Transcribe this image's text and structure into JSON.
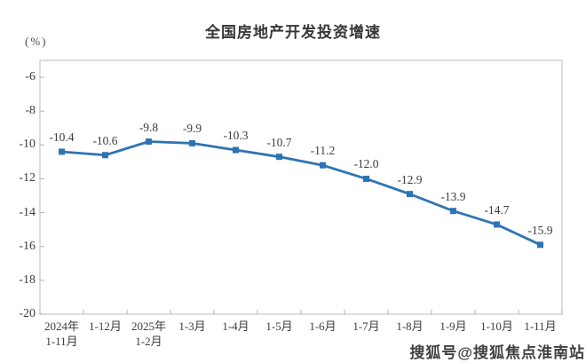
{
  "page": {
    "watermark": "搜狐号@搜狐焦点淮南站"
  },
  "chart_data": {
    "type": "line",
    "title": "全国房地产开发投资增速",
    "unit": "(%)",
    "categories": [
      [
        "2024年",
        "1-11月"
      ],
      [
        "1-12月"
      ],
      [
        "2025年",
        "1-2月"
      ],
      [
        "1-3月"
      ],
      [
        "1-4月"
      ],
      [
        "1-5月"
      ],
      [
        "1-6月"
      ],
      [
        "1-7月"
      ],
      [
        "1-8月"
      ],
      [
        "1-9月"
      ],
      [
        "1-10月"
      ],
      [
        "1-11月"
      ]
    ],
    "values": [
      -10.4,
      -10.6,
      -9.8,
      -9.9,
      -10.3,
      -10.7,
      -11.2,
      -12.0,
      -12.9,
      -13.9,
      -14.7,
      -15.9
    ],
    "data_labels": [
      "-10.4",
      "-10.6",
      "-9.8",
      "-9.9",
      "-10.3",
      "-10.7",
      "-11.2",
      "-12.0",
      "-12.9",
      "-13.9",
      "-14.7",
      "-15.9"
    ],
    "ylim": [
      -20,
      -5
    ],
    "yticks": [
      -6,
      -8,
      -10,
      -12,
      -14,
      -16,
      -18,
      -20
    ],
    "xlabel": "",
    "ylabel": "(%)",
    "grid": false,
    "legend": "none",
    "line_color": "#2E74B5",
    "marker_color": "#2E74B5",
    "marker": "square",
    "axis_color": "#c6c6c6",
    "tick_color": "#b3b3b3"
  }
}
